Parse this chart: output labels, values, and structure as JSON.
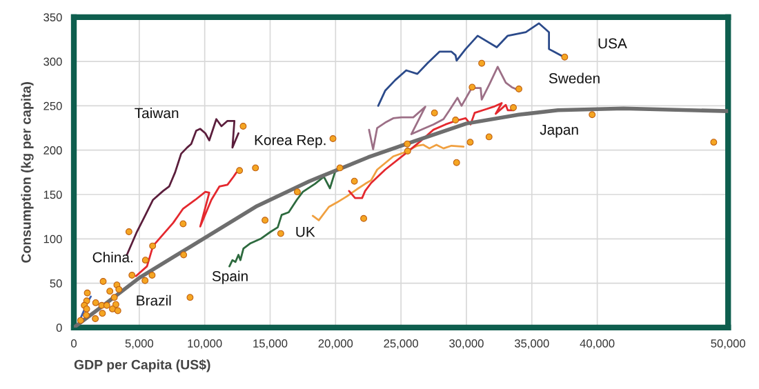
{
  "chart_data": {
    "type": "line",
    "xlabel": "GDP per Capita (US$)",
    "ylabel": "Consumption (kg per capita)",
    "xlim": [
      0,
      50000
    ],
    "ylim": [
      0,
      350
    ],
    "xticks": [
      {
        "value": 0,
        "label": "0"
      },
      {
        "value": 5000,
        "label": "5,000"
      },
      {
        "value": 10000,
        "label": "10,000"
      },
      {
        "value": 15000,
        "label": "15,000"
      },
      {
        "value": 20000,
        "label": "20,000"
      },
      {
        "value": 25000,
        "label": "25,000"
      },
      {
        "value": 30000,
        "label": "30,000"
      },
      {
        "value": 35000,
        "label": "35,000"
      },
      {
        "value": 40000,
        "label": "40,000"
      },
      {
        "value": 50000,
        "label": "50,000"
      }
    ],
    "yticks": [
      0,
      50,
      100,
      150,
      200,
      250,
      300,
      350
    ],
    "grid": true,
    "series": [
      {
        "color": "#6e6e6e",
        "x": [
          0,
          2000,
          5000,
          9000,
          14000,
          18000,
          22500,
          26000,
          30000,
          34000,
          37000,
          42000,
          50000
        ],
        "values": [
          0,
          22,
          56,
          92,
          137,
          165,
          192,
          210,
          230,
          240,
          245,
          247,
          244
        ]
      },
      {
        "color": "#3a5fb0",
        "x": [
          500,
          800,
          1100,
          1300
        ],
        "values": [
          10,
          20,
          30,
          35
        ]
      },
      {
        "color": "#5b1e3c",
        "x": [
          4055,
          4820,
          5440,
          6050,
          6820,
          7280,
          7740,
          8200,
          8660,
          8970,
          9350,
          9660,
          10050,
          10350,
          10890,
          11280,
          11740,
          12270,
          12120,
          12580
        ],
        "values": [
          82,
          108,
          126,
          144,
          154,
          159,
          175,
          196,
          203,
          207,
          222,
          224,
          219,
          211,
          235,
          227,
          233,
          233,
          203,
          219
        ]
      },
      {
        "color": "#e4282e",
        "x": [
          4750,
          5590,
          6050,
          6820,
          7590,
          8350,
          9280,
          10050,
          10350,
          9660,
          10510,
          11120,
          11740,
          12200,
          12430
        ],
        "values": [
          58,
          69,
          92,
          105,
          118,
          134,
          144,
          153,
          152,
          114,
          144,
          159,
          161,
          170,
          175
        ]
      },
      {
        "color": "#2d6a3e",
        "x": [
          11890,
          12120,
          12350,
          12580,
          12730,
          12960,
          13500,
          14270,
          15040,
          15580,
          15880,
          16420,
          17040,
          17500,
          18420,
          19110,
          19570,
          19950,
          20260
        ],
        "values": [
          69,
          76,
          74,
          82,
          76,
          89,
          95,
          100,
          108,
          113,
          127,
          130,
          144,
          153,
          162,
          170,
          157,
          175,
          180
        ]
      },
      {
        "color": "#f0a040",
        "x": [
          18260,
          18720,
          19490,
          20100,
          20870,
          21640,
          22260,
          22720,
          23180,
          24410,
          25180,
          26250,
          26710,
          27170,
          27710,
          28250,
          28860,
          29780
        ],
        "values": [
          126,
          121,
          136,
          141,
          148,
          156,
          162,
          166,
          178,
          193,
          197,
          205,
          206,
          202,
          206,
          202,
          205,
          204
        ]
      },
      {
        "color": "#e4282e",
        "x": [
          21030,
          21490,
          22030,
          22260,
          22720,
          23790,
          25330,
          26560,
          27480,
          28400,
          29170,
          29940,
          30320,
          30630,
          31470,
          32090,
          32700,
          32240,
          33010,
          33160,
          33620
        ],
        "values": [
          154,
          146,
          146,
          154,
          163,
          178,
          196,
          211,
          223,
          229,
          233,
          236,
          229,
          242,
          246,
          249,
          253,
          241,
          251,
          245,
          245
        ]
      },
      {
        "color": "#9c6f86",
        "x": [
          22560,
          22870,
          23180,
          23790,
          24410,
          25020,
          25940,
          26860,
          25790,
          26710,
          27480,
          28250,
          28710,
          29320,
          29630,
          30400,
          31090,
          31170,
          31780,
          32390,
          33010,
          33470,
          33930
        ],
        "values": [
          223,
          201,
          225,
          231,
          236,
          237,
          237,
          249,
          218,
          224,
          229,
          235,
          245,
          259,
          250,
          270,
          270,
          257,
          275,
          294,
          276,
          271,
          268
        ]
      },
      {
        "color": "#2b4a8a",
        "x": [
          23260,
          23790,
          24560,
          25400,
          26250,
          27020,
          27940,
          28860,
          29170,
          29250,
          29940,
          30860,
          32320,
          33160,
          34540,
          35540,
          36310,
          36310,
          36700,
          37460
        ],
        "values": [
          250,
          267,
          279,
          290,
          286,
          298,
          311,
          311,
          307,
          301,
          314,
          329,
          316,
          329,
          333,
          343,
          333,
          314,
          311,
          305
        ]
      },
      {
        "type": "scatter",
        "color": "#f5a623",
        "marker": "circle",
        "x": [
          12940,
          12660,
          13880,
          8350,
          4210,
          6020,
          5470,
          4440,
          5440,
          5980,
          8390,
          2240,
          3290,
          2750,
          3440,
          3090,
          8880,
          1030,
          980,
          800,
          1670,
          2130,
          2520,
          3210,
          2950,
          3360,
          980,
          950,
          2180,
          1640,
          520,
          19800,
          20330,
          17080,
          14610,
          15810,
          21440,
          22150,
          31170,
          30440,
          34010,
          27560,
          29170,
          33590,
          25480,
          25510,
          30290,
          31730,
          29250,
          37510,
          39610,
          48900
        ],
        "values": [
          227,
          177,
          180,
          117,
          108,
          92,
          76,
          59,
          53,
          59,
          82,
          52,
          48,
          41,
          43,
          34,
          34,
          39,
          30,
          25,
          28,
          25,
          25,
          26,
          21,
          19,
          21,
          14,
          16,
          10,
          8,
          213,
          180,
          153,
          121,
          106,
          165,
          123,
          298,
          271,
          269,
          242,
          234,
          248,
          207,
          199,
          209,
          215,
          186,
          305,
          240,
          209
        ]
      }
    ],
    "annotations": [
      {
        "text": "USA",
        "x": 37460,
        "y": 305
      },
      {
        "text": "Sweden",
        "x": 33930,
        "y": 268
      },
      {
        "text": "Japan",
        "x": 33620,
        "y": 245
      },
      {
        "text": "Taiwan",
        "x": 8970,
        "y": 207
      },
      {
        "text": "Korea Rep.",
        "x": 12430,
        "y": 175
      },
      {
        "text": "UK",
        "x": 18260,
        "y": 126
      },
      {
        "text": "Spain",
        "x": 11890,
        "y": 69
      },
      {
        "text": "China.",
        "x": 1300,
        "y": 35
      },
      {
        "text": "Brazil",
        "x": 3360,
        "y": 19
      }
    ]
  }
}
